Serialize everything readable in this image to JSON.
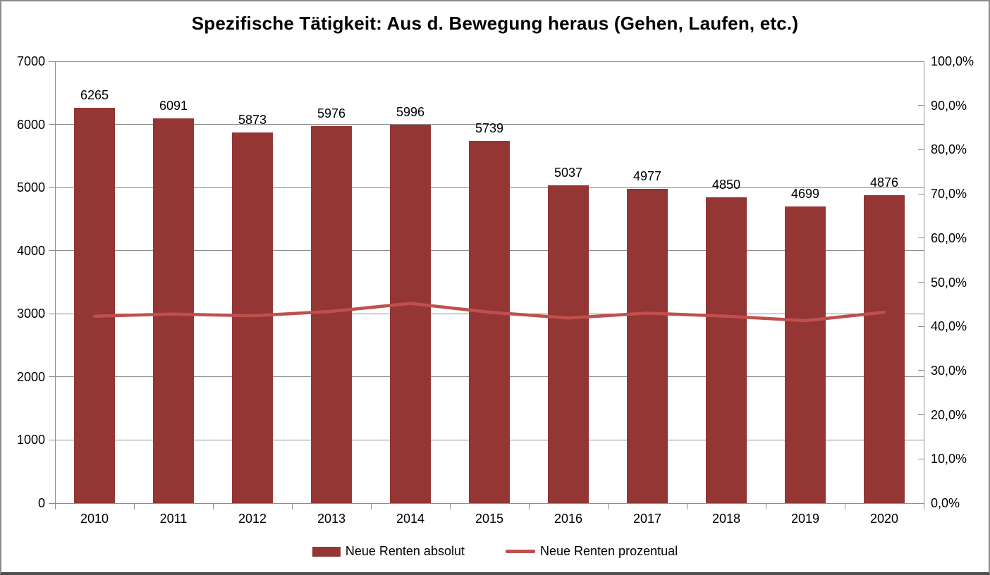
{
  "chart_data": {
    "type": "bar+line combo",
    "title": "Spezifische Tätigkeit: Aus d. Bewegung heraus (Gehen, Laufen, etc.)",
    "categories": [
      "2010",
      "2011",
      "2012",
      "2013",
      "2014",
      "2015",
      "2016",
      "2017",
      "2018",
      "2019",
      "2020"
    ],
    "series": [
      {
        "name": "Neue Renten absolut",
        "type": "bar",
        "axis": "left",
        "color": "#943634",
        "values": [
          6265,
          6091,
          5873,
          5976,
          5996,
          5739,
          5037,
          4977,
          4850,
          4699,
          4876
        ],
        "data_labels": [
          "6265",
          "6091",
          "5873",
          "5976",
          "5996",
          "5739",
          "5037",
          "4977",
          "4850",
          "4699",
          "4876"
        ]
      },
      {
        "name": "Neue Renten prozentual",
        "type": "line",
        "axis": "right",
        "color": "#c0504d",
        "values": [
          42.3,
          42.8,
          42.4,
          43.4,
          45.2,
          43.2,
          41.9,
          43.0,
          42.3,
          41.3,
          43.2
        ]
      }
    ],
    "left_axis": {
      "min": 0,
      "max": 7000,
      "step": 1000,
      "tick_labels": [
        "0",
        "1000",
        "2000",
        "3000",
        "4000",
        "5000",
        "6000",
        "7000"
      ]
    },
    "right_axis": {
      "min": 0,
      "max": 100,
      "step": 10,
      "tick_labels": [
        "0,0%",
        "10,0%",
        "20,0%",
        "30,0%",
        "40,0%",
        "50,0%",
        "60,0%",
        "70,0%",
        "80,0%",
        "90,0%",
        "100,0%"
      ]
    },
    "grid": "horizontal gridlines at left-axis 1000 steps",
    "legend_position": "bottom-center",
    "colors": {
      "gridline": "#8e8e8e",
      "axis": "#8e8e8e",
      "text": "#000000",
      "background": "#ffffff"
    }
  }
}
